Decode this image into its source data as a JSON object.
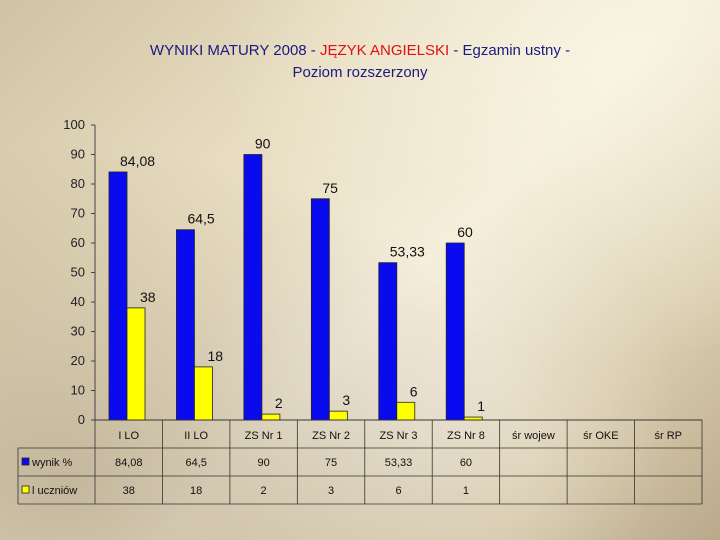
{
  "title": {
    "part1": "WYNIKI MATURY 2008 - ",
    "part2": "JĘZYK ANGIELSKI",
    "part3": " - Egzamin ustny -",
    "line2": "Poziom rozszerzony"
  },
  "colors": {
    "series1": "#0a0aee",
    "series2": "#ffff00",
    "title_text": "#1a1a80",
    "title_highlight": "#e01010"
  },
  "chart_data": {
    "type": "bar",
    "title": "WYNIKI MATURY 2008 - JĘZYK ANGIELSKI - Egzamin ustny - Poziom rozszerzony",
    "categories": [
      "I LO",
      "II LO",
      "ZS Nr 1",
      "ZS Nr 2",
      "ZS Nr 3",
      "ZS Nr 8",
      "śr  wojew",
      "śr  OKE",
      "śr  RP"
    ],
    "series": [
      {
        "name": "wynik %",
        "values": [
          84.08,
          64.5,
          90,
          75,
          53.33,
          60,
          null,
          null,
          null
        ],
        "labels": [
          "84,08",
          "64,5",
          "90",
          "75",
          "53,33",
          "60",
          "",
          "",
          ""
        ]
      },
      {
        "name": "l uczniów",
        "values": [
          38,
          18,
          2,
          3,
          6,
          1,
          null,
          null,
          null
        ],
        "labels": [
          "38",
          "18",
          "2",
          "3",
          "6",
          "1",
          "",
          "",
          ""
        ]
      }
    ],
    "yticks": [
      "100",
      "90",
      "80",
      "70",
      "60",
      "50",
      "40",
      "30",
      "20",
      "10",
      "0"
    ],
    "ylim": [
      0,
      100
    ],
    "grid": false,
    "legend": "data table"
  }
}
